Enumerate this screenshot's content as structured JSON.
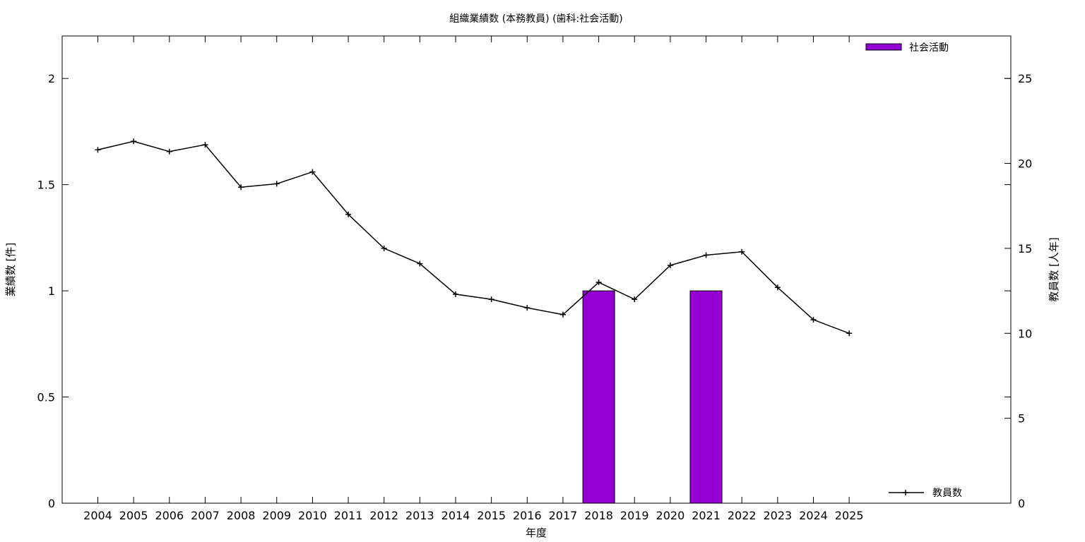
{
  "chart_data": {
    "type": "bar",
    "title": "組織業績数 (本務教員) (歯科:社会活動)",
    "xlabel": "年度",
    "ylabel": "業績数 [件]",
    "y2label": "教員数 [人年]",
    "categories": [
      "2004",
      "2005",
      "2006",
      "2007",
      "2008",
      "2009",
      "2010",
      "2011",
      "2012",
      "2013",
      "2014",
      "2015",
      "2016",
      "2017",
      "2018",
      "2019",
      "2020",
      "2021",
      "2022",
      "2023",
      "2024",
      "2025"
    ],
    "ylim": [
      0,
      2.2
    ],
    "yticks": [
      0,
      0.5,
      1,
      1.5,
      2
    ],
    "ytick_labels": [
      "0",
      "0.5",
      "1",
      "1.5",
      "2"
    ],
    "y2lim": [
      0,
      27.5
    ],
    "y2ticks": [
      0,
      5,
      10,
      15,
      20,
      25
    ],
    "y2tick_labels": [
      "0",
      "5",
      "10",
      "15",
      "20",
      "25"
    ],
    "series": [
      {
        "name": "社会活動",
        "type": "bar",
        "axis": "left",
        "color": "#9400d3",
        "values": [
          0,
          0,
          0,
          0,
          0,
          0,
          0,
          0,
          0,
          0,
          0,
          0,
          0,
          0,
          1,
          0,
          0,
          1,
          0,
          0,
          0,
          0
        ]
      },
      {
        "name": "教員数",
        "type": "line",
        "axis": "right",
        "color": "#000000",
        "marker": "plus",
        "values": [
          20.8,
          21.3,
          20.7,
          21.1,
          18.6,
          18.8,
          19.5,
          17.0,
          15.0,
          14.1,
          12.3,
          12.0,
          11.5,
          11.1,
          13.0,
          12.0,
          14.0,
          14.6,
          14.8,
          12.7,
          10.8,
          10.0
        ]
      }
    ],
    "legend": [
      "top-right",
      "bottom-right"
    ],
    "grid": false
  }
}
